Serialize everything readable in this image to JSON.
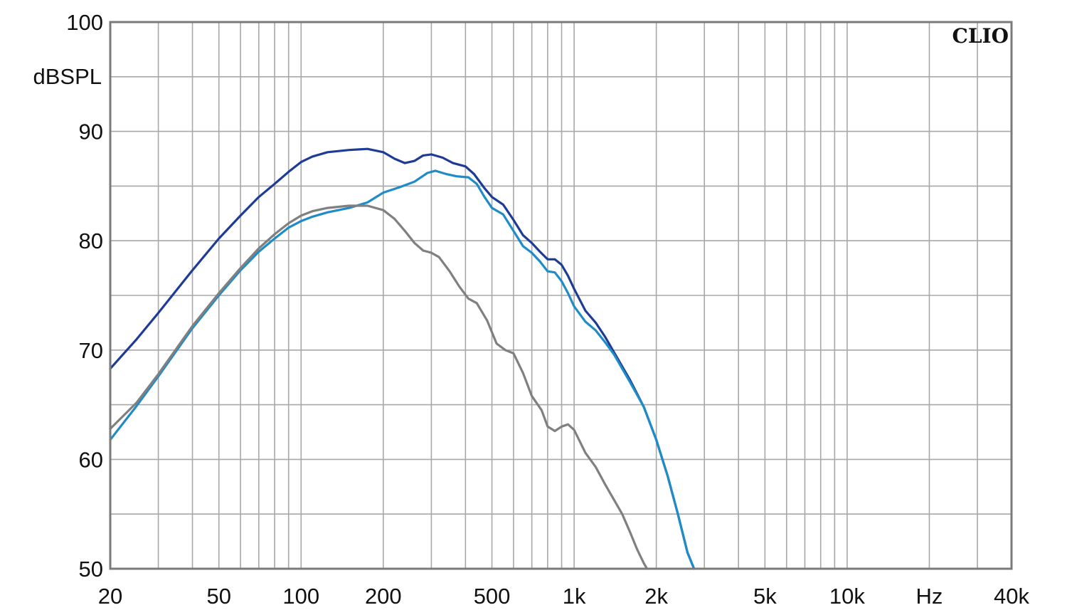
{
  "chart_data": {
    "type": "line",
    "brand": "CLIO",
    "ylabel": "dBSPL",
    "xunit": "Hz",
    "xscale": "log",
    "xlim": [
      20,
      40000
    ],
    "ylim": [
      50,
      100
    ],
    "grid": true,
    "x_ticks": [
      {
        "value": 20,
        "label": "20"
      },
      {
        "value": 50,
        "label": "50"
      },
      {
        "value": 100,
        "label": "100"
      },
      {
        "value": 200,
        "label": "200"
      },
      {
        "value": 500,
        "label": "500"
      },
      {
        "value": 1000,
        "label": "1k"
      },
      {
        "value": 2000,
        "label": "2k"
      },
      {
        "value": 5000,
        "label": "5k"
      },
      {
        "value": 10000,
        "label": "10k"
      },
      {
        "value": 40000,
        "label": "40k"
      }
    ],
    "y_ticks": [
      {
        "value": 100,
        "label": "100"
      },
      {
        "value": 90,
        "label": "90"
      },
      {
        "value": 80,
        "label": "80"
      },
      {
        "value": 70,
        "label": "70"
      },
      {
        "value": 60,
        "label": "60"
      },
      {
        "value": 50,
        "label": "50"
      }
    ],
    "series": [
      {
        "color": "#1e3c96",
        "points": [
          [
            20,
            68.3
          ],
          [
            25,
            71
          ],
          [
            30,
            73.4
          ],
          [
            40,
            77.3
          ],
          [
            50,
            80.2
          ],
          [
            60,
            82.3
          ],
          [
            70,
            84
          ],
          [
            80,
            85.2
          ],
          [
            90,
            86.3
          ],
          [
            100,
            87.2
          ],
          [
            110,
            87.7
          ],
          [
            125,
            88.1
          ],
          [
            150,
            88.3
          ],
          [
            175,
            88.4
          ],
          [
            200,
            88.1
          ],
          [
            220,
            87.5
          ],
          [
            240,
            87.1
          ],
          [
            260,
            87.3
          ],
          [
            280,
            87.8
          ],
          [
            300,
            87.9
          ],
          [
            330,
            87.6
          ],
          [
            360,
            87.1
          ],
          [
            400,
            86.8
          ],
          [
            430,
            86.1
          ],
          [
            470,
            84.8
          ],
          [
            500,
            84
          ],
          [
            550,
            83.3
          ],
          [
            600,
            81.9
          ],
          [
            650,
            80.5
          ],
          [
            700,
            79.8
          ],
          [
            750,
            79
          ],
          [
            800,
            78.3
          ],
          [
            850,
            78.3
          ],
          [
            900,
            77.8
          ],
          [
            950,
            76.8
          ],
          [
            1000,
            75.6
          ],
          [
            1100,
            73.6
          ],
          [
            1200,
            72.5
          ],
          [
            1300,
            71.2
          ],
          [
            1400,
            69.8
          ],
          [
            1500,
            68.5
          ],
          [
            1600,
            67.3
          ],
          [
            1800,
            64.8
          ],
          [
            2000,
            61.8
          ],
          [
            2200,
            58.5
          ],
          [
            2400,
            55
          ],
          [
            2600,
            51.5
          ],
          [
            2750,
            50
          ]
        ]
      },
      {
        "color": "#1f8cc8",
        "points": [
          [
            20,
            61.8
          ],
          [
            25,
            64.9
          ],
          [
            30,
            67.6
          ],
          [
            40,
            72
          ],
          [
            50,
            75
          ],
          [
            60,
            77.3
          ],
          [
            70,
            79
          ],
          [
            80,
            80.2
          ],
          [
            90,
            81.2
          ],
          [
            100,
            81.8
          ],
          [
            110,
            82.2
          ],
          [
            125,
            82.6
          ],
          [
            150,
            83
          ],
          [
            175,
            83.5
          ],
          [
            200,
            84.4
          ],
          [
            230,
            84.9
          ],
          [
            260,
            85.4
          ],
          [
            290,
            86.2
          ],
          [
            310,
            86.4
          ],
          [
            340,
            86.1
          ],
          [
            370,
            85.9
          ],
          [
            410,
            85.8
          ],
          [
            440,
            85.2
          ],
          [
            470,
            84
          ],
          [
            500,
            83
          ],
          [
            550,
            82.4
          ],
          [
            600,
            80.9
          ],
          [
            650,
            79.5
          ],
          [
            700,
            78.9
          ],
          [
            750,
            78.1
          ],
          [
            800,
            77.2
          ],
          [
            850,
            77.1
          ],
          [
            900,
            76.3
          ],
          [
            950,
            75.2
          ],
          [
            1000,
            74
          ],
          [
            1100,
            72.6
          ],
          [
            1200,
            71.8
          ],
          [
            1300,
            70.7
          ],
          [
            1400,
            69.6
          ],
          [
            1500,
            68.3
          ],
          [
            1600,
            67.1
          ],
          [
            1800,
            64.8
          ],
          [
            2000,
            61.8
          ],
          [
            2200,
            58.5
          ],
          [
            2400,
            55
          ],
          [
            2600,
            51.5
          ],
          [
            2750,
            50
          ]
        ]
      },
      {
        "color": "#808080",
        "points": [
          [
            20,
            62.8
          ],
          [
            25,
            65.2
          ],
          [
            30,
            67.8
          ],
          [
            40,
            72.2
          ],
          [
            50,
            75.2
          ],
          [
            60,
            77.5
          ],
          [
            70,
            79.3
          ],
          [
            80,
            80.6
          ],
          [
            90,
            81.6
          ],
          [
            100,
            82.3
          ],
          [
            110,
            82.7
          ],
          [
            125,
            83
          ],
          [
            150,
            83.2
          ],
          [
            175,
            83.2
          ],
          [
            200,
            82.8
          ],
          [
            220,
            82
          ],
          [
            240,
            80.9
          ],
          [
            260,
            79.8
          ],
          [
            280,
            79.1
          ],
          [
            300,
            78.9
          ],
          [
            320,
            78.5
          ],
          [
            350,
            77.2
          ],
          [
            380,
            75.8
          ],
          [
            410,
            74.7
          ],
          [
            440,
            74.3
          ],
          [
            480,
            72.7
          ],
          [
            520,
            70.6
          ],
          [
            560,
            70
          ],
          [
            600,
            69.7
          ],
          [
            650,
            67.9
          ],
          [
            700,
            65.8
          ],
          [
            760,
            64.5
          ],
          [
            800,
            63
          ],
          [
            850,
            62.6
          ],
          [
            900,
            63
          ],
          [
            950,
            63.2
          ],
          [
            1000,
            62.7
          ],
          [
            1100,
            60.6
          ],
          [
            1200,
            59.3
          ],
          [
            1300,
            57.7
          ],
          [
            1400,
            56.3
          ],
          [
            1500,
            55
          ],
          [
            1600,
            53.4
          ],
          [
            1700,
            51.8
          ],
          [
            1800,
            50.5
          ],
          [
            1850,
            50
          ]
        ]
      }
    ]
  }
}
